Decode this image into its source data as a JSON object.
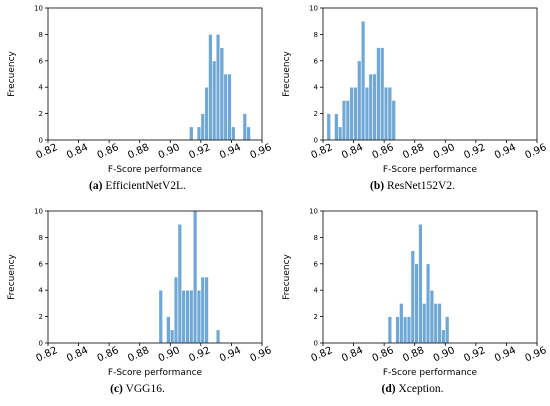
{
  "chart_data": [
    {
      "type": "bar",
      "title": "",
      "caption_tag": "(a)",
      "caption_text": "EfficientNetV2L.",
      "xlabel": "F-Score performance",
      "ylabel": "Frecuency",
      "xlim": [
        0.82,
        0.96
      ],
      "ylim": [
        0,
        10
      ],
      "xticks": [
        "0.82",
        "0.84",
        "0.86",
        "0.88",
        "0.90",
        "0.92",
        "0.94",
        "0.96"
      ],
      "yticks": [
        "0",
        "2",
        "4",
        "6",
        "8",
        "10"
      ],
      "bin_width": 0.0025,
      "bins": [
        {
          "x": 0.9125,
          "value": 1
        },
        {
          "x": 0.9175,
          "value": 1
        },
        {
          "x": 0.92,
          "value": 2
        },
        {
          "x": 0.9225,
          "value": 4
        },
        {
          "x": 0.925,
          "value": 8
        },
        {
          "x": 0.9275,
          "value": 6
        },
        {
          "x": 0.93,
          "value": 8
        },
        {
          "x": 0.9325,
          "value": 7
        },
        {
          "x": 0.935,
          "value": 5
        },
        {
          "x": 0.9375,
          "value": 5
        },
        {
          "x": 0.94,
          "value": 1
        },
        {
          "x": 0.9475,
          "value": 2
        },
        {
          "x": 0.95,
          "value": 1
        }
      ]
    },
    {
      "type": "bar",
      "title": "",
      "caption_tag": "(b)",
      "caption_text": "ResNet152V2.",
      "xlabel": "F-Score performance",
      "ylabel": "Frecuency",
      "xlim": [
        0.82,
        0.96
      ],
      "ylim": [
        0,
        10
      ],
      "xticks": [
        "0.82",
        "0.84",
        "0.86",
        "0.88",
        "0.90",
        "0.92",
        "0.94",
        "0.96"
      ],
      "yticks": [
        "0",
        "2",
        "4",
        "6",
        "8",
        "10"
      ],
      "bin_width": 0.0025,
      "bins": [
        {
          "x": 0.8225,
          "value": 2
        },
        {
          "x": 0.8275,
          "value": 2
        },
        {
          "x": 0.83,
          "value": 1
        },
        {
          "x": 0.8325,
          "value": 3
        },
        {
          "x": 0.835,
          "value": 3
        },
        {
          "x": 0.8375,
          "value": 4
        },
        {
          "x": 0.84,
          "value": 4
        },
        {
          "x": 0.8425,
          "value": 6
        },
        {
          "x": 0.845,
          "value": 9
        },
        {
          "x": 0.8475,
          "value": 4
        },
        {
          "x": 0.85,
          "value": 5
        },
        {
          "x": 0.8525,
          "value": 5
        },
        {
          "x": 0.855,
          "value": 7
        },
        {
          "x": 0.8575,
          "value": 7
        },
        {
          "x": 0.86,
          "value": 4
        },
        {
          "x": 0.8625,
          "value": 4
        },
        {
          "x": 0.865,
          "value": 3
        }
      ]
    },
    {
      "type": "bar",
      "title": "",
      "caption_tag": "(c)",
      "caption_text": "VGG16.",
      "xlabel": "F-Score performance",
      "ylabel": "Frecuency",
      "xlim": [
        0.82,
        0.96
      ],
      "ylim": [
        0,
        10
      ],
      "xticks": [
        "0.82",
        "0.84",
        "0.86",
        "0.88",
        "0.90",
        "0.92",
        "0.94",
        "0.96"
      ],
      "yticks": [
        "0",
        "2",
        "4",
        "6",
        "8",
        "10"
      ],
      "bin_width": 0.0025,
      "bins": [
        {
          "x": 0.8925,
          "value": 4
        },
        {
          "x": 0.8975,
          "value": 2
        },
        {
          "x": 0.9,
          "value": 1
        },
        {
          "x": 0.9025,
          "value": 5
        },
        {
          "x": 0.905,
          "value": 9
        },
        {
          "x": 0.9075,
          "value": 4
        },
        {
          "x": 0.91,
          "value": 4
        },
        {
          "x": 0.9125,
          "value": 4
        },
        {
          "x": 0.915,
          "value": 10
        },
        {
          "x": 0.9175,
          "value": 4
        },
        {
          "x": 0.92,
          "value": 5
        },
        {
          "x": 0.9225,
          "value": 5
        },
        {
          "x": 0.93,
          "value": 1
        }
      ]
    },
    {
      "type": "bar",
      "title": "",
      "caption_tag": "(d)",
      "caption_text": "Xception.",
      "xlabel": "F-Score performance",
      "ylabel": "Frecuency",
      "xlim": [
        0.82,
        0.96
      ],
      "ylim": [
        0,
        10
      ],
      "xticks": [
        "0.82",
        "0.84",
        "0.86",
        "0.88",
        "0.90",
        "0.92",
        "0.94",
        "0.96"
      ],
      "yticks": [
        "0",
        "2",
        "4",
        "6",
        "8",
        "10"
      ],
      "bin_width": 0.0025,
      "bins": [
        {
          "x": 0.8625,
          "value": 2
        },
        {
          "x": 0.8675,
          "value": 2
        },
        {
          "x": 0.87,
          "value": 3
        },
        {
          "x": 0.8725,
          "value": 2
        },
        {
          "x": 0.875,
          "value": 2
        },
        {
          "x": 0.8775,
          "value": 7
        },
        {
          "x": 0.88,
          "value": 6
        },
        {
          "x": 0.8825,
          "value": 9
        },
        {
          "x": 0.885,
          "value": 3
        },
        {
          "x": 0.8875,
          "value": 6
        },
        {
          "x": 0.89,
          "value": 4
        },
        {
          "x": 0.8925,
          "value": 3
        },
        {
          "x": 0.895,
          "value": 3
        },
        {
          "x": 0.8975,
          "value": 1
        },
        {
          "x": 0.9,
          "value": 2
        }
      ]
    }
  ],
  "colors": {
    "bar_fill": "#6fa8d6",
    "bar_edge": "#ffffff",
    "axis": "#000000"
  }
}
